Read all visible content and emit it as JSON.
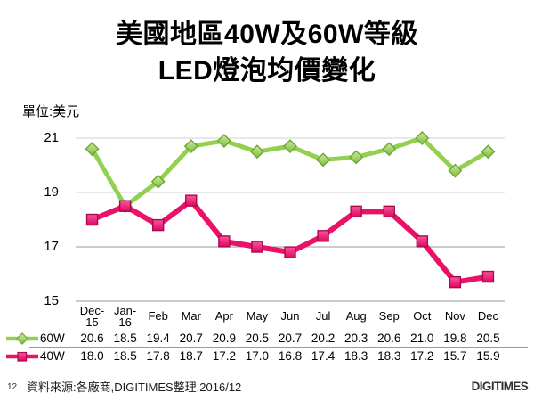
{
  "title": {
    "line1": "美國地區40W及60W等級",
    "line2": "LED燈泡均價變化"
  },
  "chart": {
    "unit_label": "單位:美元"
  },
  "chart_data": {
    "type": "line",
    "title": "美國地區40W及60W等級LED燈泡均價變化",
    "unit_label": "單位:美元",
    "categories": [
      "Dec-15",
      "Jan-16",
      "Feb",
      "Mar",
      "Apr",
      "May",
      "Jun",
      "Jul",
      "Aug",
      "Sep",
      "Oct",
      "Nov",
      "Dec"
    ],
    "ylim": [
      15,
      21
    ],
    "yticks": [
      21,
      19,
      17,
      15
    ],
    "grid": true,
    "legend_position": "left-of-data-table",
    "series": [
      {
        "name": "60W",
        "marker": "diamond",
        "color": "#92D050",
        "values": [
          20.6,
          18.5,
          19.4,
          20.7,
          20.9,
          20.5,
          20.7,
          20.2,
          20.3,
          20.6,
          21.0,
          19.8,
          20.5
        ]
      },
      {
        "name": "40W",
        "marker": "square",
        "color": "#EA1168",
        "values": [
          18.0,
          18.5,
          17.8,
          18.7,
          17.2,
          17.0,
          16.8,
          17.4,
          18.3,
          18.3,
          17.2,
          15.7,
          15.9
        ]
      }
    ]
  },
  "footer": {
    "page_number": "12",
    "source": "資料來源:各廠商,DIGITIMES整理,2016/12",
    "logo": "DIGITIMES"
  }
}
